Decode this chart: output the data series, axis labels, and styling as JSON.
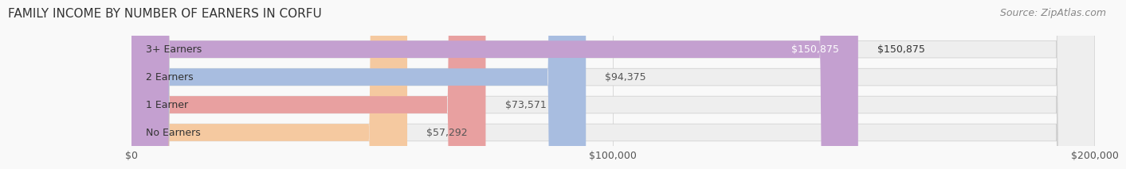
{
  "title": "FAMILY INCOME BY NUMBER OF EARNERS IN CORFU",
  "source": "Source: ZipAtlas.com",
  "categories": [
    "No Earners",
    "1 Earner",
    "2 Earners",
    "3+ Earners"
  ],
  "values": [
    57292,
    73571,
    94375,
    150875
  ],
  "labels": [
    "$57,292",
    "$73,571",
    "$94,375",
    "$150,875"
  ],
  "bar_colors": [
    "#f5c9a0",
    "#e8a0a0",
    "#a8bde0",
    "#c4a0d0"
  ],
  "bar_bg_color": "#eeeeee",
  "label_colors": [
    "#555555",
    "#555555",
    "#555555",
    "#ffffff"
  ],
  "xlim": [
    0,
    200000
  ],
  "xticks": [
    0,
    100000,
    200000
  ],
  "xticklabels": [
    "$0",
    "$100,000",
    "$200,000"
  ],
  "title_fontsize": 11,
  "source_fontsize": 9,
  "label_fontsize": 9,
  "tick_fontsize": 9,
  "cat_fontsize": 9,
  "background_color": "#f9f9f9"
}
